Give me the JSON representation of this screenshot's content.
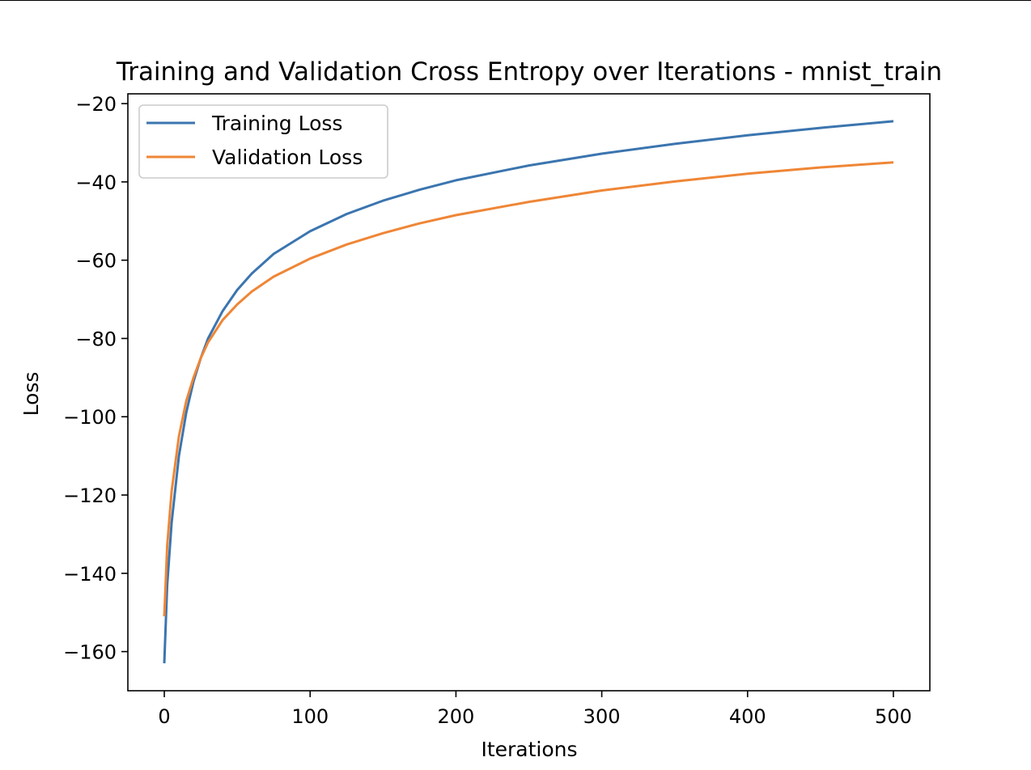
{
  "chart_data": {
    "type": "line",
    "title": "Training and Validation Cross Entropy over Iterations - mnist_train",
    "xlabel": "Iterations",
    "ylabel": "Loss",
    "xlim": [
      -25,
      525
    ],
    "ylim": [
      -170,
      -17.5
    ],
    "xticks": [
      0,
      100,
      200,
      300,
      400,
      500
    ],
    "yticks": [
      -20,
      -40,
      -60,
      -80,
      -100,
      -120,
      -140,
      -160
    ],
    "xtick_labels": [
      "0",
      "100",
      "200",
      "300",
      "400",
      "500"
    ],
    "ytick_labels": [
      "−20",
      "−40",
      "−60",
      "−80",
      "−100",
      "−120",
      "−140",
      "−160"
    ],
    "grid": false,
    "legend": "upper left",
    "series": [
      {
        "name": "Training Loss",
        "color": "#3b75af",
        "x": [
          0,
          2,
          5,
          10,
          15,
          20,
          25,
          30,
          40,
          50,
          60,
          75,
          100,
          125,
          150,
          175,
          200,
          250,
          300,
          350,
          400,
          450,
          500
        ],
        "y": [
          -163,
          -143,
          -127,
          -110,
          -99,
          -91,
          -85,
          -80,
          -73,
          -67.6,
          -63.4,
          -58.4,
          -52.6,
          -48.2,
          -44.8,
          -42.0,
          -39.6,
          -35.8,
          -32.8,
          -30.3,
          -28.1,
          -26.2,
          -24.5
        ]
      },
      {
        "name": "Validation Loss",
        "color": "#ef8636",
        "x": [
          0,
          2,
          5,
          10,
          15,
          20,
          25,
          30,
          40,
          50,
          60,
          75,
          100,
          125,
          150,
          175,
          200,
          250,
          300,
          350,
          400,
          450,
          500
        ],
        "y": [
          -151,
          -133,
          -119,
          -105,
          -96,
          -90,
          -85,
          -81,
          -75.3,
          -71.3,
          -68.0,
          -64.2,
          -59.6,
          -56.0,
          -53.1,
          -50.6,
          -48.5,
          -45.1,
          -42.2,
          -39.9,
          -37.9,
          -36.3,
          -35.0
        ]
      }
    ]
  }
}
